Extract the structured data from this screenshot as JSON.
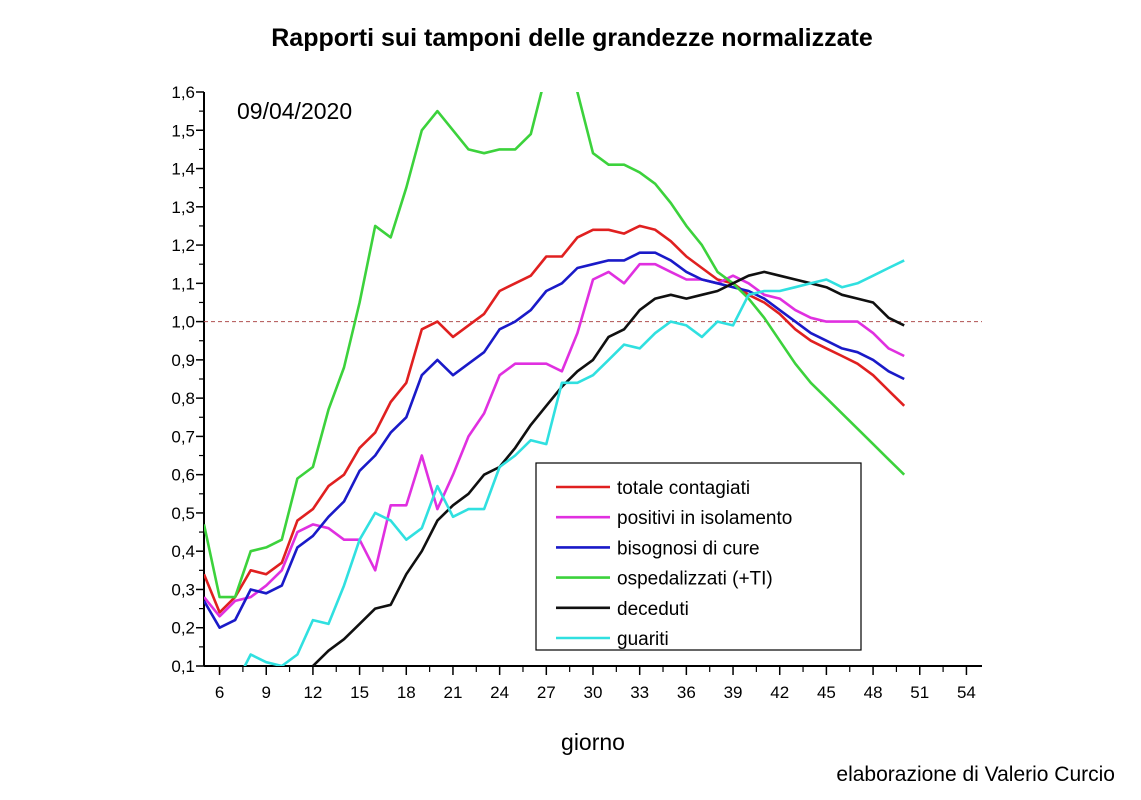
{
  "chart_data": {
    "type": "line",
    "title": "Rapporti sui tamponi delle grandezze normalizzate",
    "date_label": "09/04/2020",
    "xlabel": "giorno",
    "ylabel": "",
    "credit": "elaborazione di Valerio Curcio",
    "xlim": [
      5,
      55
    ],
    "ylim": [
      0.1,
      1.6
    ],
    "x_ticks": [
      "6",
      "9",
      "12",
      "15",
      "18",
      "21",
      "24",
      "27",
      "30",
      "33",
      "36",
      "39",
      "42",
      "45",
      "48",
      "51",
      "54"
    ],
    "y_ticks": [
      "0,1",
      "0,2",
      "0,3",
      "0,4",
      "0,5",
      "0,6",
      "0,7",
      "0,8",
      "0,9",
      "1,0",
      "1,1",
      "1,2",
      "1,3",
      "1,4",
      "1,5",
      "1,6"
    ],
    "reference_line": 1.0,
    "legend_position": "lower-right",
    "x_start": 5,
    "series": [
      {
        "name": "totale contagiati",
        "color": "#e02020",
        "values": [
          0.34,
          0.24,
          0.28,
          0.35,
          0.34,
          0.37,
          0.48,
          0.51,
          0.57,
          0.6,
          0.67,
          0.71,
          0.79,
          0.84,
          0.98,
          1.0,
          0.96,
          0.99,
          1.02,
          1.08,
          1.1,
          1.12,
          1.17,
          1.17,
          1.22,
          1.24,
          1.24,
          1.23,
          1.25,
          1.24,
          1.21,
          1.17,
          1.14,
          1.11,
          1.1,
          1.07,
          1.05,
          1.02,
          0.98,
          0.95,
          0.93,
          0.91,
          0.89,
          0.86,
          0.82,
          0.78
        ]
      },
      {
        "name": "positivi in isolamento",
        "color": "#e030e0",
        "values": [
          0.28,
          0.23,
          0.27,
          0.28,
          0.31,
          0.35,
          0.45,
          0.47,
          0.46,
          0.43,
          0.43,
          0.35,
          0.52,
          0.52,
          0.65,
          0.51,
          0.6,
          0.7,
          0.76,
          0.86,
          0.89,
          0.89,
          0.89,
          0.87,
          0.97,
          1.11,
          1.13,
          1.1,
          1.15,
          1.15,
          1.13,
          1.11,
          1.11,
          1.1,
          1.12,
          1.1,
          1.07,
          1.06,
          1.03,
          1.01,
          1.0,
          1.0,
          1.0,
          0.97,
          0.93,
          0.91
        ]
      },
      {
        "name": "bisognosi di cure",
        "color": "#1a1ac8",
        "values": [
          0.27,
          0.2,
          0.22,
          0.3,
          0.29,
          0.31,
          0.41,
          0.44,
          0.49,
          0.53,
          0.61,
          0.65,
          0.71,
          0.75,
          0.86,
          0.9,
          0.86,
          0.89,
          0.92,
          0.98,
          1.0,
          1.03,
          1.08,
          1.1,
          1.14,
          1.15,
          1.16,
          1.16,
          1.18,
          1.18,
          1.16,
          1.13,
          1.11,
          1.1,
          1.09,
          1.08,
          1.06,
          1.03,
          1.0,
          0.97,
          0.95,
          0.93,
          0.92,
          0.9,
          0.87,
          0.85
        ]
      },
      {
        "name": "ospedalizzati (+TI)",
        "color": "#3cd23c",
        "values": [
          0.47,
          0.28,
          0.28,
          0.4,
          0.41,
          0.43,
          0.59,
          0.62,
          0.77,
          0.88,
          1.05,
          1.25,
          1.22,
          1.35,
          1.5,
          1.55,
          1.5,
          1.45,
          1.44,
          1.45,
          1.45,
          1.49,
          1.65,
          1.7,
          1.6,
          1.44,
          1.41,
          1.41,
          1.39,
          1.36,
          1.31,
          1.25,
          1.2,
          1.13,
          1.1,
          1.06,
          1.01,
          0.95,
          0.89,
          0.84,
          0.8,
          0.76,
          0.72,
          0.68,
          0.64,
          0.6
        ]
      },
      {
        "name": "deceduti",
        "color": "#101010",
        "values": [
          null,
          null,
          null,
          null,
          null,
          null,
          null,
          0.1,
          0.14,
          0.17,
          0.21,
          0.25,
          0.26,
          0.34,
          0.4,
          0.48,
          0.52,
          0.55,
          0.6,
          0.62,
          0.67,
          0.73,
          0.78,
          0.83,
          0.87,
          0.9,
          0.96,
          0.98,
          1.03,
          1.06,
          1.07,
          1.06,
          1.07,
          1.08,
          1.1,
          1.12,
          1.13,
          1.12,
          1.11,
          1.1,
          1.09,
          1.07,
          1.06,
          1.05,
          1.01,
          0.99
        ]
      },
      {
        "name": "guariti",
        "color": "#30e0e0",
        "values": [
          null,
          null,
          0.05,
          0.13,
          0.11,
          0.1,
          0.13,
          0.22,
          0.21,
          0.31,
          0.43,
          0.5,
          0.48,
          0.43,
          0.46,
          0.57,
          0.49,
          0.51,
          0.51,
          0.62,
          0.65,
          0.69,
          0.68,
          0.84,
          0.84,
          0.86,
          0.9,
          0.94,
          0.93,
          0.97,
          1.0,
          0.99,
          0.96,
          1.0,
          0.99,
          1.07,
          1.08,
          1.08,
          1.09,
          1.1,
          1.11,
          1.09,
          1.1,
          1.12,
          1.14,
          1.16
        ]
      }
    ]
  }
}
